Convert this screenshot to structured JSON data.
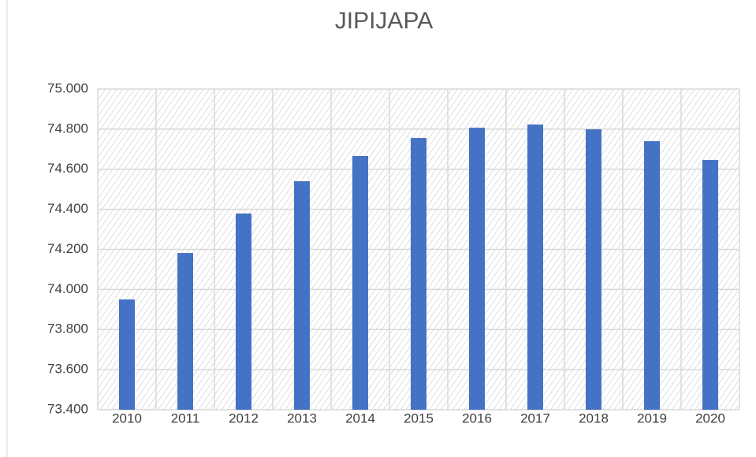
{
  "chart_data": {
    "type": "bar",
    "title": "JIPIJAPA",
    "categories": [
      "2010",
      "2011",
      "2012",
      "2013",
      "2014",
      "2015",
      "2016",
      "2017",
      "2018",
      "2019",
      "2020"
    ],
    "values": [
      73950,
      74182,
      74379,
      74540,
      74666,
      74756,
      74807,
      74823,
      74799,
      74740,
      74646
    ],
    "color": "#4472c4",
    "ylim": [
      73400,
      75000
    ],
    "yticks": [
      {
        "value": 73400,
        "label": "73.400"
      },
      {
        "value": 73600,
        "label": "73.600"
      },
      {
        "value": 73800,
        "label": "73.800"
      },
      {
        "value": 74000,
        "label": "74.000"
      },
      {
        "value": 74200,
        "label": "74.200"
      },
      {
        "value": 74400,
        "label": "74.400"
      },
      {
        "value": 74600,
        "label": "74.600"
      },
      {
        "value": 74800,
        "label": "74.800"
      },
      {
        "value": 75000,
        "label": "75.000"
      }
    ],
    "grid": true
  }
}
